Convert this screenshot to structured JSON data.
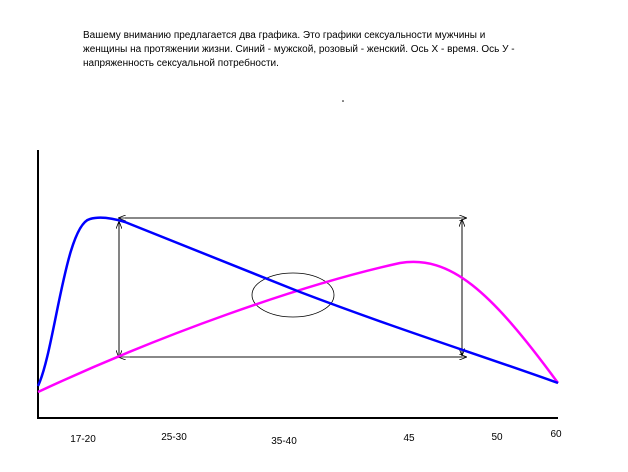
{
  "description": [
    "Вашему вниманию предлагается два графика. Это графики сексуальности мужчины и",
    "женщины на протяжении жизни. Синий - мужской, розовый - женский. Ось Х - время. Ось У -",
    "напряженность сексуальной потребности."
  ],
  "x_labels": [
    "17-20",
    "25-30",
    "35-40",
    "45",
    "50",
    "60"
  ]
}
